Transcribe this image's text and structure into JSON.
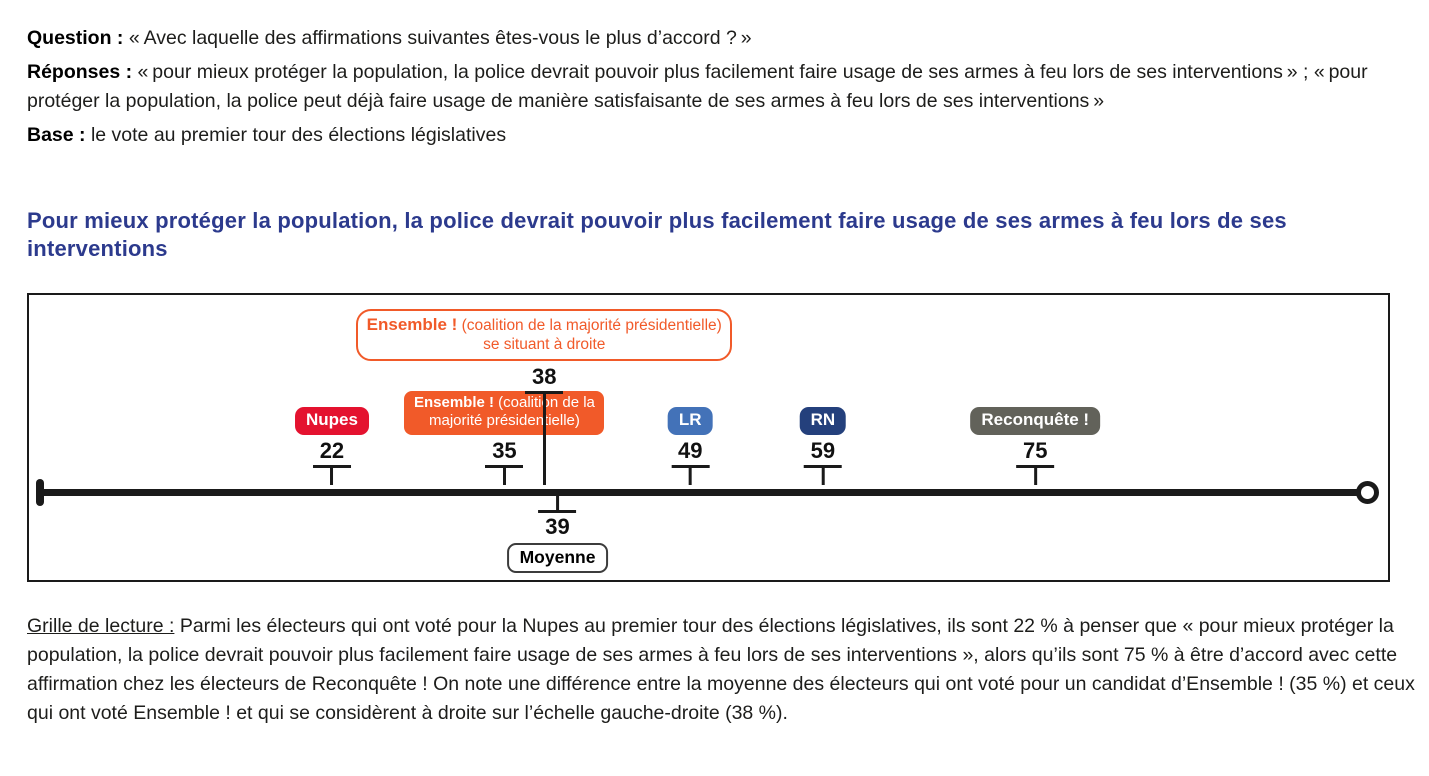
{
  "intro": {
    "question_label": "Question :",
    "question_text": "« Avec laquelle des affirmations suivantes êtes-vous le plus d’accord ? »",
    "responses_label": "Réponses :",
    "responses_text": "« pour mieux protéger la population, la police devrait pouvoir plus facilement faire usage de ses armes à feu lors de ses interventions » ; « pour protéger la population, la police peut déjà faire usage de manière satisfaisante de ses armes à feu lors de ses interventions »",
    "base_label": "Base :",
    "base_text": "le vote au premier tour des élections législatives"
  },
  "chart_data": {
    "type": "scatter",
    "title": "Pour mieux protéger la population, la police devrait pouvoir plus facilement faire usage de ses armes à feu lors de ses interventions",
    "axis": {
      "min": 0,
      "max": 100,
      "orientation": "horizontal",
      "unit": "%"
    },
    "markers": [
      {
        "name": "Nupes",
        "value": 22,
        "style": "filled",
        "color": "#e4122f",
        "label_bold": "Nupes",
        "label_rest": ""
      },
      {
        "name": "Ensemble !",
        "value": 35,
        "style": "filled",
        "color": "#f15a29",
        "label_bold": "Ensemble !",
        "label_rest": "(coalition de la majorité présidentielle)"
      },
      {
        "name": "Ensemble ! se situant à droite",
        "value": 38,
        "style": "callout",
        "color": "#f15a29",
        "label_bold": "Ensemble !",
        "label_rest": "(coalition de la majorité présidentielle)",
        "label_line2": "se situant à droite"
      },
      {
        "name": "LR",
        "value": 49,
        "style": "filled",
        "color": "#4372b8",
        "label_bold": "LR",
        "label_rest": ""
      },
      {
        "name": "RN",
        "value": 59,
        "style": "filled",
        "color": "#24407c",
        "label_bold": "RN",
        "label_rest": ""
      },
      {
        "name": "Reconquête !",
        "value": 75,
        "style": "filled",
        "color": "#62625a",
        "label_bold": "Reconquête !",
        "label_rest": ""
      }
    ],
    "mean": {
      "label": "Moyenne",
      "value": 39
    }
  },
  "reading_note": {
    "label": "Grille de lecture :",
    "text": "Parmi les électeurs qui ont voté pour la Nupes au premier tour des élections législatives, ils sont 22 % à penser que « pour mieux protéger la population, la police devrait pouvoir plus facilement faire usage de ses armes à feu lors de ses interventions », alors qu’ils sont 75 % à être d’accord avec cette affirmation chez les électeurs de Reconquête ! On note une différence entre la moyenne des électeurs qui ont voté pour un candidat d’Ensemble ! (35 %) et ceux qui ont voté Ensemble ! et qui se considèrent à droite sur l’échelle gauche-droite (38 %)."
  }
}
